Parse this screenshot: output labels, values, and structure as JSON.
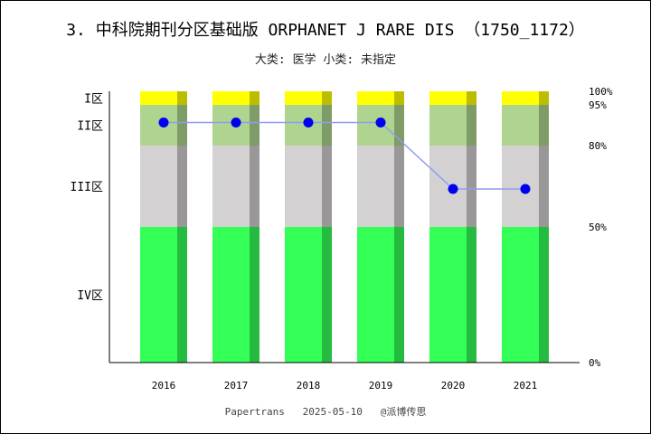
{
  "chart_data": {
    "type": "bar",
    "title": "3. 中科院期刊分区基础版 ORPHANET J RARE DIS （1750_1172）",
    "subtitle": "大类: 医学 小类: 未指定",
    "categories": [
      "2016",
      "2017",
      "2018",
      "2019",
      "2020",
      "2021"
    ],
    "zones": [
      {
        "label": "I区",
        "from": 95,
        "to": 100,
        "color": "#ffff00",
        "shade": "#bdbd00"
      },
      {
        "label": "II区",
        "from": 80,
        "to": 95,
        "color": "#afd48f",
        "shade": "#7f9b68"
      },
      {
        "label": "III区",
        "from": 50,
        "to": 80,
        "color": "#d3d1d2",
        "shade": "#999798"
      },
      {
        "label": "IV区",
        "from": 0,
        "to": 50,
        "color": "#33ff57",
        "shade": "#25bb40"
      }
    ],
    "right_ticks": [
      {
        "value": 100,
        "label": "100%"
      },
      {
        "value": 95,
        "label": "95%"
      },
      {
        "value": 80,
        "label": "80%"
      },
      {
        "value": 50,
        "label": "50%"
      },
      {
        "value": 0,
        "label": "0%"
      }
    ],
    "series": [
      {
        "values": [
          88.5,
          88.5,
          88.5,
          88.5,
          64,
          64
        ],
        "color": "#0000ee",
        "line_color": "#8f9cf2"
      }
    ],
    "ylim": [
      0,
      100
    ],
    "footer": "Papertrans   2025-05-10   @派博传思"
  }
}
